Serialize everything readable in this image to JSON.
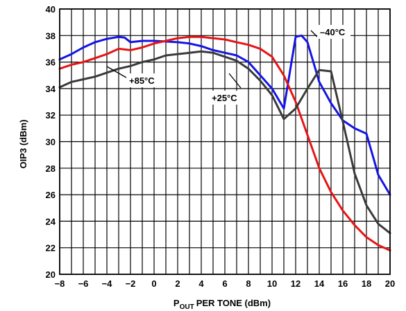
{
  "chart_data": {
    "type": "line",
    "title": "",
    "xlabel": "PER TONE (dBm)",
    "xlabel_prefix": "P",
    "xlabel_subscript": "OUT",
    "ylabel": "OIP3 (dBm)",
    "xlim": [
      -8,
      20
    ],
    "ylim": [
      20,
      40
    ],
    "x_ticks": [
      -8,
      -6,
      -4,
      -2,
      0,
      2,
      4,
      6,
      8,
      10,
      12,
      14,
      16,
      18,
      20
    ],
    "y_ticks": [
      20,
      22,
      24,
      26,
      28,
      30,
      32,
      34,
      36,
      38,
      40
    ],
    "grid": true,
    "legend": "none",
    "series": [
      {
        "name": "−40°C",
        "color": "#1414e6",
        "x": [
          -8,
          -7,
          -6,
          -5,
          -4,
          -3,
          -2.5,
          -2,
          -1,
          0,
          1,
          2,
          3,
          4,
          5,
          6,
          7,
          8,
          9,
          10,
          11,
          12,
          12.5,
          13,
          14,
          15,
          16,
          17,
          18,
          19,
          20
        ],
        "y": [
          36.2,
          36.6,
          37.1,
          37.5,
          37.75,
          37.9,
          37.85,
          37.5,
          37.6,
          37.6,
          37.55,
          37.5,
          37.4,
          37.2,
          36.9,
          36.7,
          36.5,
          36.0,
          35.0,
          34.0,
          32.5,
          37.9,
          38.0,
          37.5,
          34.5,
          32.9,
          31.6,
          31.0,
          30.6,
          27.5,
          26.0
        ]
      },
      {
        "name": "+85°C",
        "color": "#e61414",
        "x": [
          -8,
          -7,
          -6,
          -5,
          -4,
          -3,
          -2,
          -1,
          0,
          1,
          2,
          3,
          4,
          5,
          6,
          7,
          8,
          9,
          10,
          11,
          12,
          13,
          14,
          15,
          16,
          17,
          18,
          19,
          20
        ],
        "y": [
          35.5,
          35.8,
          36.0,
          36.3,
          36.6,
          37.0,
          36.9,
          37.1,
          37.4,
          37.6,
          37.8,
          37.9,
          37.9,
          37.8,
          37.7,
          37.5,
          37.3,
          37.0,
          36.4,
          35.0,
          33.0,
          30.5,
          28.0,
          26.2,
          24.8,
          23.7,
          22.8,
          22.2,
          21.8
        ]
      },
      {
        "name": "+25°C",
        "color": "#3a3a3a",
        "x": [
          -8,
          -7,
          -6,
          -5,
          -4,
          -3,
          -2,
          -1,
          0,
          1,
          2,
          3,
          4,
          5,
          6,
          7,
          8,
          9,
          10,
          11,
          12,
          13,
          14,
          15,
          16,
          17,
          18,
          19,
          20
        ],
        "y": [
          34.1,
          34.5,
          34.7,
          34.9,
          35.2,
          35.5,
          35.7,
          36.0,
          36.2,
          36.5,
          36.6,
          36.7,
          36.8,
          36.7,
          36.4,
          36.1,
          35.5,
          34.6,
          33.5,
          31.7,
          32.5,
          34.0,
          35.4,
          35.3,
          31.5,
          27.6,
          25.2,
          23.8,
          23.1
        ]
      }
    ],
    "annotations": [
      {
        "text": "+85°C"
      },
      {
        "text": "+25°C"
      },
      {
        "text": "–40°C"
      }
    ]
  }
}
